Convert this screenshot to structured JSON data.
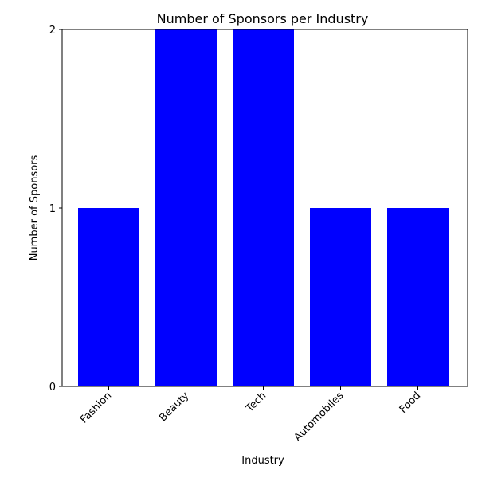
{
  "chart_data": {
    "type": "bar",
    "title": "Number of Sponsors per Industry",
    "xlabel": "Industry",
    "ylabel": "Number of Sponsors",
    "categories": [
      "Fashion",
      "Beauty",
      "Tech",
      "Automobiles",
      "Food"
    ],
    "values": [
      1,
      2,
      2,
      1,
      1
    ],
    "ylim": [
      0,
      2.0
    ],
    "yticks": [
      0,
      1,
      2
    ],
    "grid": false,
    "legend": "none",
    "bar_color": "#0000ff",
    "x_tick_rotation": 45
  }
}
